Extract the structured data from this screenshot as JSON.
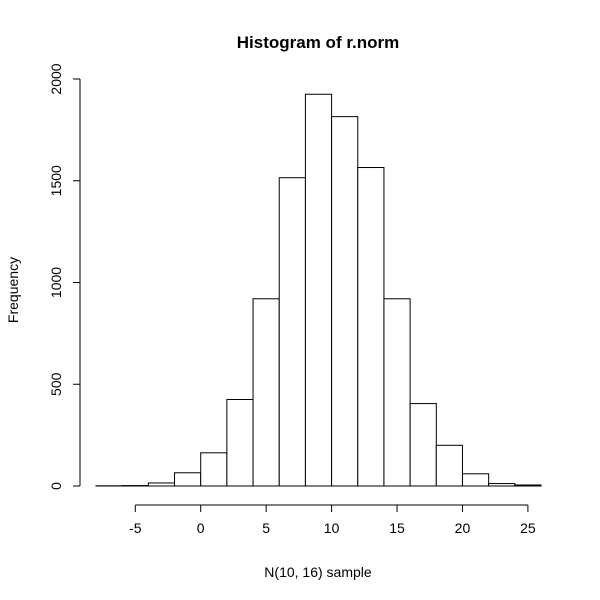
{
  "chart_data": {
    "type": "bar",
    "title": "Histogram of r.norm",
    "xlabel": "N(10, 16) sample",
    "ylabel": "Frequency",
    "bin_edges": [
      -8,
      -6,
      -4,
      -2,
      0,
      2,
      4,
      6,
      8,
      10,
      12,
      14,
      16,
      18,
      20,
      22,
      24,
      26
    ],
    "values": [
      1,
      2,
      15,
      65,
      163,
      425,
      920,
      1515,
      1925,
      1815,
      1565,
      920,
      405,
      200,
      60,
      12,
      5
    ],
    "x_ticks": [
      -5,
      0,
      5,
      10,
      15,
      20,
      25
    ],
    "y_ticks": [
      0,
      500,
      1000,
      1500,
      2000
    ],
    "xlim": [
      -8,
      26
    ],
    "ylim": [
      0,
      2000
    ],
    "grid": false
  }
}
